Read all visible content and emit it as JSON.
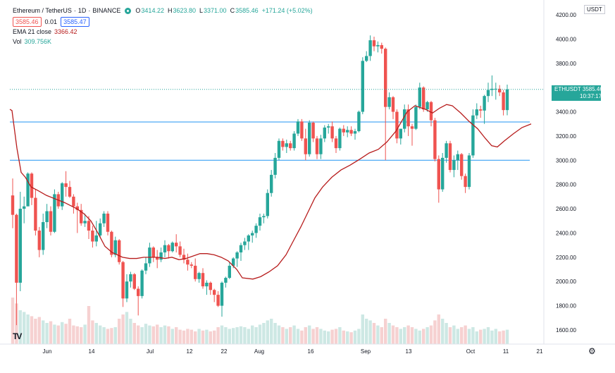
{
  "legend": {
    "symbol": "Ethereum / TetherUS",
    "separator": "·",
    "interval": "1D",
    "exchange": "BINANCE",
    "ohlc": [
      {
        "k": "O",
        "v": "3414.22"
      },
      {
        "k": "H",
        "v": "3623.80"
      },
      {
        "k": "L",
        "v": "3371.00"
      },
      {
        "k": "C",
        "v": "3585.46"
      },
      {
        "k": "",
        "v": "+171.24 (+5.02%)"
      }
    ],
    "bid": "3585.46",
    "spread": "0.01",
    "ask": "3585.47",
    "ema_label": "EMA 21 close",
    "ema_value": "3366.42",
    "vol_label": "Vol",
    "vol_value": "309.756K"
  },
  "price_scale": {
    "currency": "USDT",
    "ticks": [
      "4200.00",
      "4000.00",
      "3800.00",
      "3600.00",
      "3400.00",
      "3200.00",
      "3000.00",
      "2800.00",
      "2600.00",
      "2400.00",
      "2200.00",
      "2000.00",
      "1800.00",
      "1600.00"
    ]
  },
  "price_tag": {
    "symbol": "ETHUSDT",
    "price": "3585.46",
    "countdown": "10:37:17"
  },
  "time_scale": {
    "ticks": [
      "Jun",
      "14",
      "Jul",
      "12",
      "22",
      "Aug",
      "16",
      "Sep",
      "13",
      "Oct",
      "11",
      "21"
    ]
  },
  "colors": {
    "up": "#26a69a",
    "down": "#ef5350",
    "ema": "#b71c1c",
    "hline": "#2196f3",
    "vol_up": "#cde8e4",
    "vol_down": "#f6d1d1"
  },
  "chart_data": {
    "type": "candlestick",
    "title": "Ethereum / TetherUS · 1D · BINANCE",
    "ylim": [
      1500,
      4260
    ],
    "horizontal_lines": [
      3316,
      3000
    ],
    "candles": [
      [
        2710,
        2850,
        2440,
        2550
      ],
      [
        2550,
        2560,
        1640,
        1990
      ],
      [
        1990,
        2740,
        1920,
        2600
      ],
      [
        2600,
        2700,
        2480,
        2620
      ],
      [
        2620,
        2900,
        2620,
        2890
      ],
      [
        2890,
        2900,
        2630,
        2690
      ],
      [
        2690,
        2760,
        2380,
        2420
      ],
      [
        2420,
        2450,
        2200,
        2260
      ],
      [
        2260,
        2560,
        2220,
        2490
      ],
      [
        2490,
        2640,
        2440,
        2580
      ],
      [
        2580,
        2620,
        2380,
        2410
      ],
      [
        2410,
        2760,
        2400,
        2720
      ],
      [
        2720,
        2740,
        2600,
        2620
      ],
      [
        2620,
        2820,
        2590,
        2810
      ],
      [
        2810,
        2910,
        2700,
        2780
      ],
      [
        2780,
        2830,
        2690,
        2700
      ],
      [
        2700,
        2720,
        2560,
        2620
      ],
      [
        2620,
        2650,
        2400,
        2590
      ],
      [
        2590,
        2640,
        2460,
        2480
      ],
      [
        2480,
        2560,
        2450,
        2500
      ],
      [
        2500,
        2540,
        2350,
        2420
      ],
      [
        2420,
        2460,
        2280,
        2330
      ],
      [
        2330,
        2500,
        2290,
        2380
      ],
      [
        2380,
        2520,
        2360,
        2480
      ],
      [
        2480,
        2580,
        2450,
        2560
      ],
      [
        2560,
        2580,
        2380,
        2410
      ],
      [
        2410,
        2420,
        2200,
        2220
      ],
      [
        2220,
        2370,
        2200,
        2340
      ],
      [
        2340,
        2350,
        2140,
        2160
      ],
      [
        2160,
        2170,
        1790,
        1860
      ],
      [
        1860,
        2060,
        1830,
        2000
      ],
      [
        2000,
        2080,
        1950,
        2060
      ],
      [
        2060,
        2070,
        1930,
        1940
      ],
      [
        1940,
        1960,
        1720,
        1880
      ],
      [
        1880,
        2100,
        1860,
        2090
      ],
      [
        2090,
        2200,
        2060,
        2150
      ],
      [
        2150,
        2320,
        2120,
        2280
      ],
      [
        2280,
        2290,
        2160,
        2200
      ],
      [
        2200,
        2260,
        2110,
        2180
      ],
      [
        2180,
        2280,
        2160,
        2240
      ],
      [
        2240,
        2340,
        2200,
        2300
      ],
      [
        2300,
        2310,
        2190,
        2250
      ],
      [
        2250,
        2330,
        2240,
        2320
      ],
      [
        2320,
        2390,
        2240,
        2290
      ],
      [
        2290,
        2330,
        2200,
        2220
      ],
      [
        2220,
        2270,
        2150,
        2180
      ],
      [
        2180,
        2230,
        2090,
        2140
      ],
      [
        2140,
        2160,
        2110,
        2130
      ],
      [
        2130,
        2190,
        2000,
        2020
      ],
      [
        2020,
        2080,
        1990,
        2070
      ],
      [
        2070,
        2110,
        1940,
        1960
      ],
      [
        1960,
        2010,
        1890,
        1990
      ],
      [
        1990,
        2000,
        1890,
        1930
      ],
      [
        1930,
        1940,
        1830,
        1890
      ],
      [
        1890,
        1920,
        1790,
        1800
      ],
      [
        1800,
        2000,
        1710,
        1990
      ],
      [
        1990,
        2040,
        1950,
        2030
      ],
      [
        2030,
        2160,
        2020,
        2130
      ],
      [
        2130,
        2200,
        2110,
        2190
      ],
      [
        2190,
        2250,
        2120,
        2240
      ],
      [
        2240,
        2320,
        2170,
        2300
      ],
      [
        2300,
        2360,
        2260,
        2330
      ],
      [
        2330,
        2390,
        2260,
        2380
      ],
      [
        2380,
        2420,
        2320,
        2400
      ],
      [
        2400,
        2480,
        2360,
        2460
      ],
      [
        2460,
        2560,
        2420,
        2530
      ],
      [
        2530,
        2560,
        2480,
        2540
      ],
      [
        2540,
        2760,
        2520,
        2730
      ],
      [
        2730,
        2920,
        2700,
        2880
      ],
      [
        2880,
        3060,
        2850,
        3020
      ],
      [
        3020,
        3180,
        3000,
        3160
      ],
      [
        3160,
        3180,
        3080,
        3110
      ],
      [
        3110,
        3170,
        3060,
        3140
      ],
      [
        3140,
        3160,
        3080,
        3100
      ],
      [
        3100,
        3240,
        3080,
        3220
      ],
      [
        3220,
        3340,
        3200,
        3320
      ],
      [
        3320,
        3340,
        3160,
        3180
      ],
      [
        3180,
        3260,
        3000,
        3050
      ],
      [
        3050,
        3330,
        3030,
        3310
      ],
      [
        3310,
        3320,
        3150,
        3180
      ],
      [
        3180,
        3200,
        3010,
        3050
      ],
      [
        3050,
        3210,
        3010,
        3180
      ],
      [
        3180,
        3290,
        3150,
        3270
      ],
      [
        3270,
        3300,
        3220,
        3280
      ],
      [
        3280,
        3320,
        3150,
        3180
      ],
      [
        3180,
        3200,
        3060,
        3100
      ],
      [
        3100,
        3270,
        3080,
        3260
      ],
      [
        3260,
        3290,
        3200,
        3230
      ],
      [
        3230,
        3280,
        3190,
        3250
      ],
      [
        3250,
        3280,
        3200,
        3220
      ],
      [
        3220,
        3260,
        3170,
        3240
      ],
      [
        3240,
        3410,
        3230,
        3400
      ],
      [
        3400,
        3850,
        3380,
        3820
      ],
      [
        3820,
        3900,
        3810,
        3860
      ],
      [
        3860,
        4030,
        3820,
        3990
      ],
      [
        3990,
        4020,
        3900,
        3940
      ],
      [
        3940,
        3980,
        3890,
        3950
      ],
      [
        3950,
        3970,
        3880,
        3920
      ],
      [
        3920,
        3930,
        3000,
        3440
      ],
      [
        3440,
        3560,
        3420,
        3520
      ],
      [
        3520,
        3530,
        3340,
        3400
      ],
      [
        3400,
        3420,
        3140,
        3180
      ],
      [
        3180,
        3260,
        3130,
        3260
      ],
      [
        3260,
        3460,
        3230,
        3420
      ],
      [
        3420,
        3460,
        3200,
        3280
      ],
      [
        3280,
        3300,
        3120,
        3260
      ],
      [
        3260,
        3460,
        3250,
        3440
      ],
      [
        3440,
        3640,
        3420,
        3600
      ],
      [
        3600,
        3610,
        3400,
        3420
      ],
      [
        3420,
        3490,
        3400,
        3480
      ],
      [
        3480,
        3490,
        3280,
        3330
      ],
      [
        3330,
        3350,
        2990,
        3010
      ],
      [
        3010,
        3040,
        2650,
        2760
      ],
      [
        2760,
        3060,
        2740,
        3020
      ],
      [
        3020,
        3160,
        2980,
        3140
      ],
      [
        3140,
        3160,
        2900,
        2920
      ],
      [
        2920,
        3040,
        2860,
        3000
      ],
      [
        3000,
        3080,
        2920,
        3050
      ],
      [
        3050,
        3060,
        2840,
        2870
      ],
      [
        2870,
        2890,
        2730,
        2780
      ],
      [
        2780,
        3060,
        2760,
        3040
      ],
      [
        3040,
        3420,
        3020,
        3370
      ],
      [
        3370,
        3470,
        3340,
        3420
      ],
      [
        3420,
        3450,
        3350,
        3410
      ],
      [
        3410,
        3540,
        3300,
        3530
      ],
      [
        3530,
        3640,
        3480,
        3580
      ],
      [
        3580,
        3700,
        3530,
        3590
      ],
      [
        3590,
        3640,
        3500,
        3590
      ],
      [
        3590,
        3620,
        3530,
        3560
      ],
      [
        3560,
        3580,
        3370,
        3414
      ],
      [
        3414,
        3624,
        3371,
        3585
      ]
    ],
    "ema21": [
      [
        0,
        3420
      ],
      [
        3,
        3410
      ],
      [
        10,
        3100
      ],
      [
        16,
        2900
      ],
      [
        22,
        2860
      ],
      [
        30,
        2780
      ],
      [
        40,
        2750
      ],
      [
        52,
        2710
      ],
      [
        65,
        2680
      ],
      [
        78,
        2650
      ],
      [
        95,
        2600
      ],
      [
        105,
        2560
      ],
      [
        115,
        2500
      ],
      [
        125,
        2400
      ],
      [
        135,
        2290
      ],
      [
        145,
        2240
      ],
      [
        160,
        2200
      ],
      [
        170,
        2190
      ],
      [
        180,
        2190
      ],
      [
        190,
        2200
      ],
      [
        200,
        2200
      ],
      [
        210,
        2200
      ],
      [
        220,
        2190
      ],
      [
        230,
        2200
      ],
      [
        240,
        2180
      ],
      [
        250,
        2190
      ],
      [
        260,
        2210
      ],
      [
        270,
        2230
      ],
      [
        280,
        2230
      ],
      [
        290,
        2220
      ],
      [
        300,
        2200
      ],
      [
        310,
        2170
      ],
      [
        322,
        2100
      ],
      [
        330,
        2030
      ],
      [
        345,
        2020
      ],
      [
        356,
        2040
      ],
      [
        368,
        2080
      ],
      [
        380,
        2130
      ],
      [
        392,
        2220
      ],
      [
        402,
        2330
      ],
      [
        413,
        2450
      ],
      [
        423,
        2570
      ],
      [
        433,
        2690
      ],
      [
        444,
        2780
      ],
      [
        457,
        2860
      ],
      [
        470,
        2920
      ],
      [
        483,
        2960
      ],
      [
        497,
        3010
      ],
      [
        510,
        3060
      ],
      [
        523,
        3090
      ],
      [
        535,
        3150
      ],
      [
        548,
        3240
      ],
      [
        558,
        3340
      ],
      [
        564,
        3400
      ],
      [
        575,
        3450
      ],
      [
        590,
        3420
      ],
      [
        600,
        3390
      ],
      [
        610,
        3430
      ],
      [
        620,
        3460
      ],
      [
        628,
        3450
      ],
      [
        640,
        3390
      ],
      [
        652,
        3320
      ],
      [
        664,
        3260
      ],
      [
        675,
        3180
      ],
      [
        684,
        3120
      ],
      [
        692,
        3110
      ],
      [
        702,
        3160
      ],
      [
        715,
        3220
      ],
      [
        727,
        3270
      ],
      [
        740,
        3300
      ]
    ],
    "volumes": [
      0.55,
      0.48,
      0.4,
      0.38,
      0.35,
      0.33,
      0.3,
      0.32,
      0.28,
      0.25,
      0.27,
      0.23,
      0.22,
      0.26,
      0.24,
      0.3,
      0.22,
      0.21,
      0.2,
      0.23,
      0.45,
      0.28,
      0.25,
      0.22,
      0.2,
      0.18,
      0.19,
      0.2,
      0.3,
      0.35,
      0.38,
      0.3,
      0.25,
      0.22,
      0.2,
      0.24,
      0.22,
      0.21,
      0.23,
      0.2,
      0.22,
      0.21,
      0.18,
      0.2,
      0.17,
      0.16,
      0.18,
      0.17,
      0.15,
      0.18,
      0.16,
      0.17,
      0.15,
      0.16,
      0.2,
      0.22,
      0.2,
      0.18,
      0.19,
      0.2,
      0.21,
      0.2,
      0.18,
      0.22,
      0.2,
      0.23,
      0.25,
      0.28,
      0.3,
      0.25,
      0.22,
      0.2,
      0.18,
      0.2,
      0.22,
      0.18,
      0.16,
      0.2,
      0.22,
      0.18,
      0.2,
      0.18,
      0.16,
      0.15,
      0.17,
      0.18,
      0.2,
      0.16,
      0.15,
      0.14,
      0.16,
      0.18,
      0.35,
      0.3,
      0.28,
      0.25,
      0.22,
      0.2,
      0.3,
      0.25,
      0.22,
      0.2,
      0.18,
      0.2,
      0.22,
      0.2,
      0.18,
      0.16,
      0.18,
      0.2,
      0.22,
      0.28,
      0.35,
      0.3,
      0.25,
      0.2,
      0.22,
      0.18,
      0.2,
      0.22,
      0.18,
      0.2,
      0.15,
      0.17,
      0.18,
      0.2,
      0.16,
      0.18,
      0.15,
      0.16,
      0.17
    ]
  }
}
